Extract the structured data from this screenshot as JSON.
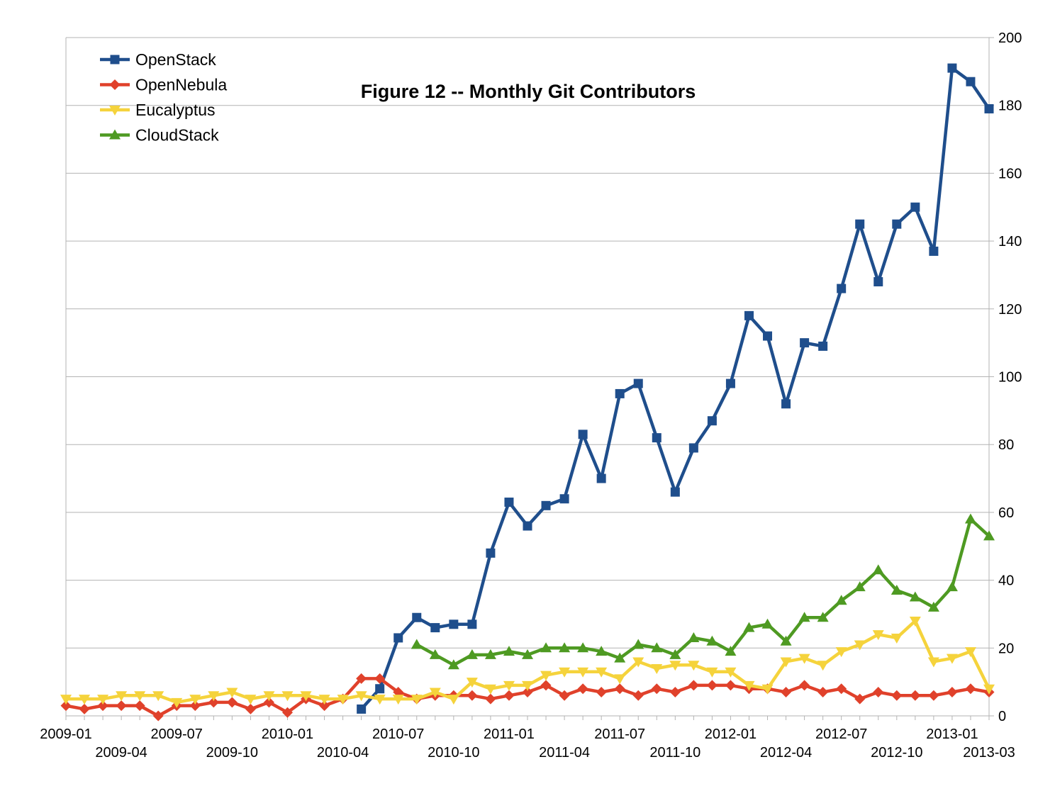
{
  "chart_data": {
    "type": "line",
    "title": "Figure 12 -- Monthly Git Contributors",
    "xlabel": "",
    "ylabel": "",
    "ylim": [
      0,
      200
    ],
    "yticks": [
      0,
      20,
      40,
      60,
      80,
      100,
      120,
      140,
      160,
      180,
      200
    ],
    "y_axis_side": "right",
    "grid": "horizontal",
    "legend_position": "top-left",
    "x": [
      "2009-01",
      "2009-02",
      "2009-03",
      "2009-04",
      "2009-05",
      "2009-06",
      "2009-07",
      "2009-08",
      "2009-09",
      "2009-10",
      "2009-11",
      "2009-12",
      "2010-01",
      "2010-02",
      "2010-03",
      "2010-04",
      "2010-05",
      "2010-06",
      "2010-07",
      "2010-08",
      "2010-09",
      "2010-10",
      "2010-11",
      "2010-12",
      "2011-01",
      "2011-02",
      "2011-03",
      "2011-04",
      "2011-05",
      "2011-06",
      "2011-07",
      "2011-08",
      "2011-09",
      "2011-10",
      "2011-11",
      "2011-12",
      "2012-01",
      "2012-02",
      "2012-03",
      "2012-04",
      "2012-05",
      "2012-06",
      "2012-07",
      "2012-08",
      "2012-09",
      "2012-10",
      "2012-11",
      "2012-12",
      "2013-01",
      "2013-02",
      "2013-03"
    ],
    "x_tick_labels": [
      "2009-01",
      "2009-04",
      "2009-07",
      "2009-10",
      "2010-01",
      "2010-04",
      "2010-07",
      "2010-10",
      "2011-01",
      "2011-04",
      "2011-07",
      "2011-10",
      "2012-01",
      "2012-04",
      "2012-07",
      "2012-10",
      "2013-01",
      "2013-03"
    ],
    "series": [
      {
        "name": "OpenStack",
        "color": "#1f4e8c",
        "marker": "square",
        "values": [
          null,
          null,
          null,
          null,
          null,
          null,
          null,
          null,
          null,
          null,
          null,
          null,
          null,
          null,
          null,
          null,
          2,
          8,
          23,
          29,
          26,
          27,
          27,
          48,
          63,
          56,
          62,
          64,
          83,
          70,
          95,
          98,
          82,
          66,
          79,
          87,
          98,
          118,
          112,
          92,
          110,
          109,
          126,
          145,
          128,
          145,
          150,
          137,
          191,
          187,
          179
        ]
      },
      {
        "name": "OpenNebula",
        "color": "#e0412b",
        "marker": "diamond",
        "values": [
          3,
          2,
          3,
          3,
          3,
          0,
          3,
          3,
          4,
          4,
          2,
          4,
          1,
          5,
          3,
          5,
          11,
          11,
          7,
          5,
          6,
          6,
          6,
          5,
          6,
          7,
          9,
          6,
          8,
          7,
          8,
          6,
          8,
          7,
          9,
          9,
          9,
          8,
          8,
          7,
          9,
          7,
          8,
          5,
          7,
          6,
          6,
          6,
          7,
          8,
          7
        ]
      },
      {
        "name": "Eucalyptus",
        "color": "#f5d33c",
        "marker": "triangle-down",
        "values": [
          5,
          5,
          5,
          6,
          6,
          6,
          4,
          5,
          6,
          7,
          5,
          6,
          6,
          6,
          5,
          5,
          6,
          5,
          5,
          5,
          7,
          5,
          10,
          8,
          9,
          9,
          12,
          13,
          13,
          13,
          11,
          16,
          14,
          15,
          15,
          13,
          13,
          9,
          8,
          16,
          17,
          15,
          19,
          21,
          24,
          23,
          28,
          16,
          17,
          19,
          8
        ]
      },
      {
        "name": "CloudStack",
        "color": "#4e9a22",
        "marker": "triangle-up",
        "values": [
          null,
          null,
          null,
          null,
          null,
          null,
          null,
          null,
          null,
          null,
          null,
          null,
          null,
          null,
          null,
          null,
          null,
          null,
          null,
          21,
          18,
          15,
          18,
          18,
          19,
          18,
          20,
          20,
          20,
          19,
          17,
          21,
          20,
          18,
          23,
          22,
          19,
          26,
          27,
          22,
          29,
          29,
          34,
          38,
          43,
          37,
          35,
          32,
          38,
          58,
          53
        ]
      }
    ]
  }
}
